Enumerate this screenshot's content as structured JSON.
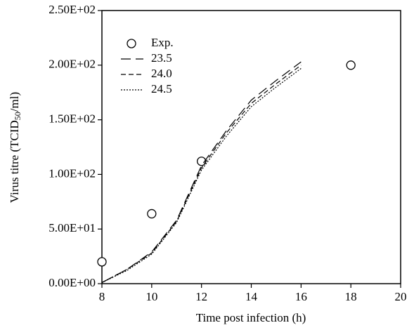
{
  "chart_data": {
    "type": "line",
    "xlabel": "Time post infection (h)",
    "ylabel": "Virus titre (TCID50/ml)",
    "xlim": [
      8,
      20
    ],
    "xticks": [
      8,
      10,
      12,
      14,
      16,
      18,
      20
    ],
    "ylim": [
      0,
      250
    ],
    "yticks": [
      {
        "value": 0,
        "label": "0.00E+00"
      },
      {
        "value": 50,
        "label": "5.00E+01"
      },
      {
        "value": 100,
        "label": "1.00E+02"
      },
      {
        "value": 150,
        "label": "1.50E+02"
      },
      {
        "value": 200,
        "label": "2.00E+02"
      },
      {
        "value": 250,
        "label": "2.50E+02"
      }
    ],
    "legend": "upper left",
    "series": [
      {
        "name": "Exp.",
        "color": "#000000",
        "marker": "circle",
        "x": [
          8,
          10,
          12,
          18
        ],
        "values": [
          20,
          64,
          112,
          200
        ]
      },
      {
        "name": "23.5",
        "color": "#000000",
        "dash": "14 7",
        "x": [
          8,
          9,
          10,
          11,
          12,
          13,
          14,
          15,
          16
        ],
        "values": [
          1,
          13,
          29,
          58,
          108,
          140,
          168,
          186,
          203
        ]
      },
      {
        "name": "24.0",
        "color": "#000000",
        "dash": "7 4",
        "x": [
          8,
          9,
          10,
          11,
          12,
          13,
          14,
          15,
          16
        ],
        "values": [
          1,
          13,
          28,
          57,
          106,
          138,
          165,
          183,
          200
        ]
      },
      {
        "name": "24.5",
        "color": "#000000",
        "dash": "2 2",
        "x": [
          8,
          9,
          10,
          11,
          12,
          13,
          14,
          15,
          16
        ],
        "values": [
          1,
          12,
          27,
          56,
          104,
          135,
          162,
          180,
          197
        ]
      }
    ]
  }
}
